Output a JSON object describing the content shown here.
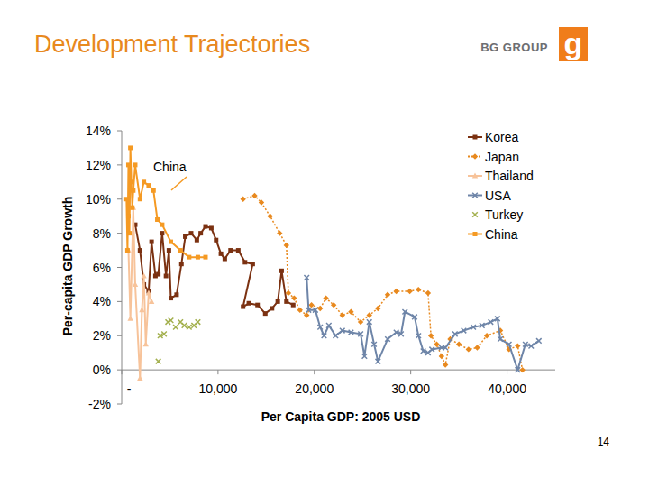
{
  "slide": {
    "logo": "BG GROUP",
    "logo_mark": "g",
    "page_number": "14"
  },
  "chart_data": {
    "type": "line",
    "title": "Development Trajectories",
    "x_label": "Per Capita GDP: 2005 USD",
    "y_label": "Per-capita GDP Growth",
    "annotations": [
      "China"
    ],
    "xlim": [
      0,
      45000
    ],
    "xticks": [
      {
        "value": 0,
        "label": "-"
      },
      {
        "value": 10000,
        "label": "10,000"
      },
      {
        "value": 20000,
        "label": "20,000"
      },
      {
        "value": 30000,
        "label": "30,000"
      },
      {
        "value": 40000,
        "label": "40,000"
      }
    ],
    "ylim": [
      -2,
      14
    ],
    "yticks": [
      {
        "value": -2,
        "label": "-2%"
      },
      {
        "value": 0,
        "label": "0%"
      },
      {
        "value": 2,
        "label": "2%"
      },
      {
        "value": 4,
        "label": "4%"
      },
      {
        "value": 6,
        "label": "6%"
      },
      {
        "value": 8,
        "label": "8%"
      },
      {
        "value": 10,
        "label": "10%"
      },
      {
        "value": 12,
        "label": "12%"
      },
      {
        "value": 14,
        "label": "14%"
      }
    ],
    "grid": false,
    "legend": "top-right",
    "series": [
      {
        "name": "Korea",
        "color": "#7b3111",
        "marker": "square",
        "line_style": "solid",
        "x": [
          1400,
          1900,
          2300,
          2800,
          3100,
          3500,
          3800,
          4200,
          4600,
          4900,
          5100,
          5700,
          6200,
          6600,
          7200,
          7800,
          8200,
          8700,
          9300,
          9800,
          10300,
          10700,
          11300,
          12100,
          12800,
          13600,
          12600,
          13200,
          14100,
          14900,
          15600,
          16200,
          16600,
          17100,
          17800
        ],
        "values": [
          8.5,
          7.0,
          5.0,
          4.6,
          7.5,
          5.5,
          5.6,
          8.0,
          5.5,
          7.0,
          4.2,
          4.4,
          6.2,
          7.8,
          8.0,
          7.6,
          8.0,
          8.4,
          8.3,
          7.6,
          6.8,
          6.5,
          7.0,
          7.0,
          6.3,
          6.2,
          3.7,
          3.9,
          3.8,
          3.3,
          3.6,
          4.0,
          5.8,
          4.0,
          3.8
        ]
      },
      {
        "name": "Japan",
        "color": "#e8891e",
        "marker": "diamond",
        "line_style": "dotted",
        "x": [
          12600,
          13800,
          14500,
          15400,
          16400,
          17100,
          17300,
          17900,
          18500,
          19200,
          19700,
          20600,
          21200,
          22000,
          22900,
          23800,
          24800,
          25700,
          26600,
          27600,
          28500,
          29900,
          30800,
          31800,
          32100,
          32700,
          33200,
          33600,
          34100,
          35000,
          36000,
          36900,
          37900,
          39300,
          40200,
          41100,
          41600
        ],
        "values": [
          10.0,
          10.2,
          9.8,
          9.0,
          8.0,
          7.3,
          4.5,
          4.2,
          3.5,
          3.2,
          3.8,
          3.6,
          4.2,
          3.8,
          3.2,
          3.4,
          2.8,
          3.2,
          3.6,
          4.4,
          4.6,
          4.6,
          4.7,
          4.5,
          2.0,
          1.5,
          0.8,
          0.3,
          1.8,
          1.5,
          1.2,
          1.3,
          2.0,
          2.3,
          1.2,
          1.4,
          0.0
        ]
      },
      {
        "name": "Thailand",
        "color": "#f7c39a",
        "marker": "triangle",
        "line_style": "solid",
        "x": [
          700,
          900,
          1200,
          1400,
          1900,
          2100,
          2300,
          2500,
          2800,
          3100
        ],
        "values": [
          7.0,
          3.0,
          9.5,
          5.0,
          -0.5,
          3.5,
          5.5,
          1.5,
          4.5,
          4.0
        ]
      },
      {
        "name": "USA",
        "color": "#6e85a8",
        "marker": "x",
        "line_style": "solid",
        "x": [
          19200,
          19400,
          20100,
          20600,
          21000,
          21500,
          22200,
          22900,
          23800,
          24800,
          25200,
          25700,
          26200,
          26600,
          27600,
          28500,
          29000,
          29400,
          30400,
          30800,
          31300,
          31800,
          32200,
          33200,
          33600,
          34600,
          35500,
          36500,
          37400,
          38300,
          39000,
          39300,
          40200,
          41100,
          41900,
          42500,
          43300
        ],
        "values": [
          5.4,
          3.5,
          3.5,
          2.5,
          2.0,
          2.6,
          2.0,
          2.3,
          2.2,
          2.1,
          0.8,
          2.8,
          1.5,
          0.5,
          1.8,
          2.2,
          2.1,
          3.4,
          3.1,
          2.0,
          1.1,
          1.0,
          1.2,
          1.3,
          1.3,
          2.1,
          2.3,
          2.5,
          2.6,
          2.8,
          3.0,
          1.8,
          1.5,
          0.0,
          1.5,
          1.4,
          1.7
        ]
      },
      {
        "name": "Turkey",
        "color": "#a3b04e",
        "marker": "x",
        "line_style": "none",
        "x": [
          3800,
          4000,
          4400,
          4800,
          5100,
          5600,
          6100,
          6500,
          7000,
          7500,
          7900
        ],
        "values": [
          0.5,
          2.0,
          2.1,
          2.8,
          2.9,
          2.5,
          2.8,
          2.6,
          2.5,
          2.6,
          2.8
        ]
      },
      {
        "name": "China",
        "color": "#f59a23",
        "marker": "square",
        "line_style": "solid",
        "x": [
          500,
          600,
          700,
          700,
          800,
          900,
          1000,
          1100,
          1200,
          1400,
          1900,
          2300,
          2800,
          3300,
          3700,
          4200,
          5100,
          6100,
          7000,
          7900,
          8700
        ],
        "values": [
          10.0,
          7.0,
          12.0,
          9.0,
          8.0,
          13.0,
          11.0,
          9.5,
          10.5,
          12.0,
          10.0,
          11.0,
          10.8,
          10.5,
          8.8,
          8.5,
          7.5,
          7.0,
          6.6,
          6.6,
          6.6
        ]
      }
    ]
  }
}
